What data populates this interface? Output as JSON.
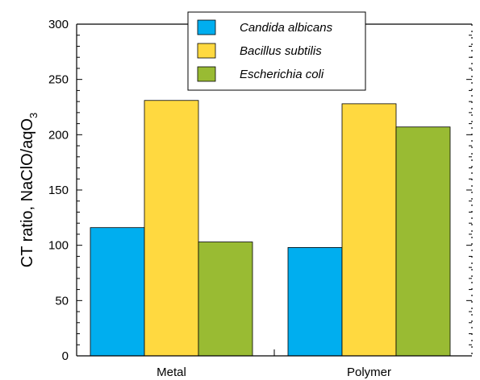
{
  "chart_data": {
    "type": "bar",
    "categories": [
      "Metal",
      "Polymer"
    ],
    "series": [
      {
        "name": "Candida albicans",
        "values": [
          116,
          98
        ],
        "color": "#00AEEF"
      },
      {
        "name": "Bacillus subtilis",
        "values": [
          231,
          228
        ],
        "color": "#FFD940"
      },
      {
        "name": "Escherichia coli",
        "values": [
          103,
          207
        ],
        "color": "#99BB33"
      }
    ],
    "title": "",
    "xlabel": "",
    "ylabel": "CT ratio, NaClO/aqO",
    "ylabel_subscript": "3",
    "ylim": [
      0,
      300
    ],
    "yticks": [
      0,
      50,
      100,
      150,
      200,
      250,
      300
    ],
    "grid": false,
    "legend": "top-center"
  }
}
